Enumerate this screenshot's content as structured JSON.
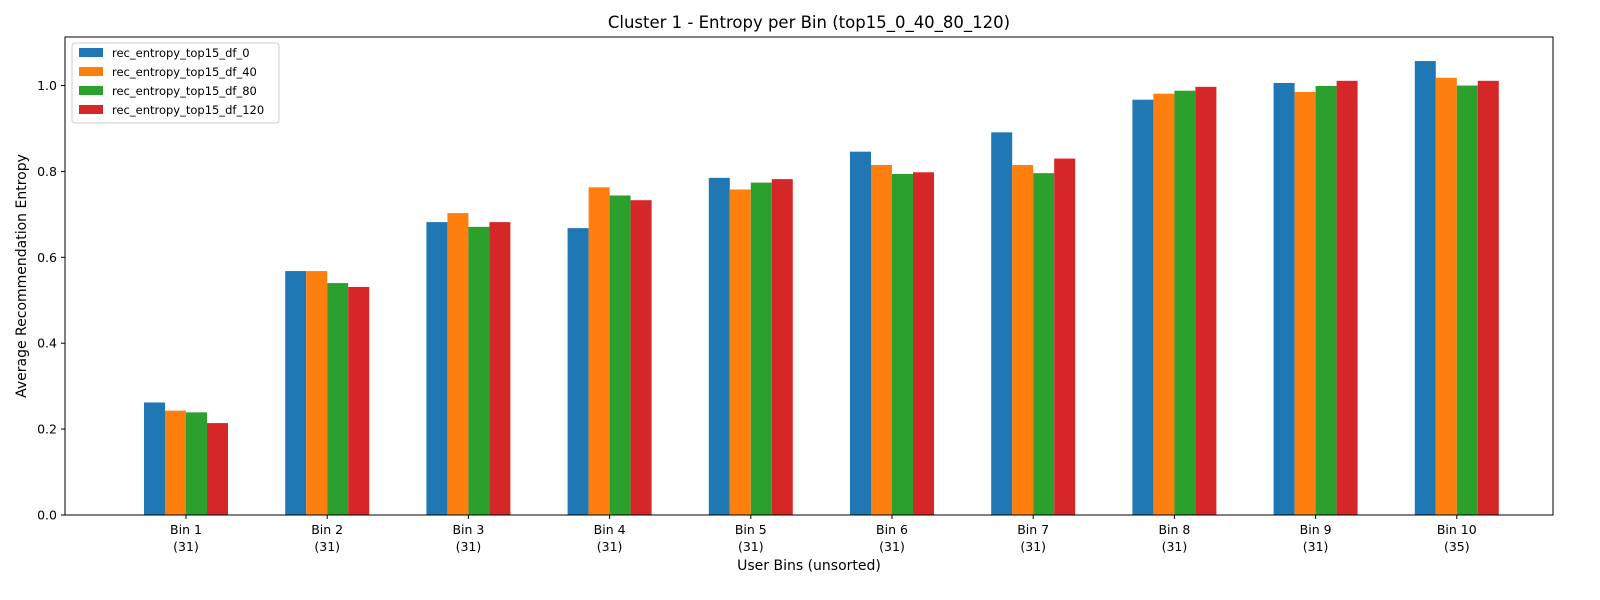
{
  "chart_data": {
    "type": "bar",
    "title": "Cluster 1 - Entropy per Bin (top15_0_40_80_120)",
    "xlabel": "User Bins (unsorted)",
    "ylabel": "Average Recommendation Entropy",
    "ylim": [
      0,
      1.113
    ],
    "yticks": [
      "0.0",
      "0.2",
      "0.4",
      "0.6",
      "0.8",
      "1.0"
    ],
    "legend_position": "top-left",
    "grid": false,
    "categories": [
      {
        "name": "Bin 1",
        "count": "(31)"
      },
      {
        "name": "Bin 2",
        "count": "(31)"
      },
      {
        "name": "Bin 3",
        "count": "(31)"
      },
      {
        "name": "Bin 4",
        "count": "(31)"
      },
      {
        "name": "Bin 5",
        "count": "(31)"
      },
      {
        "name": "Bin 6",
        "count": "(31)"
      },
      {
        "name": "Bin 7",
        "count": "(31)"
      },
      {
        "name": "Bin 8",
        "count": "(31)"
      },
      {
        "name": "Bin 9",
        "count": "(31)"
      },
      {
        "name": "Bin 10",
        "count": "(35)"
      }
    ],
    "series": [
      {
        "name": "rec_entropy_top15_df_0",
        "color": "#1f77b4",
        "values": [
          0.262,
          0.568,
          0.682,
          0.668,
          0.785,
          0.846,
          0.891,
          0.967,
          1.006,
          1.057
        ]
      },
      {
        "name": "rec_entropy_top15_df_40",
        "color": "#ff7f0e",
        "values": [
          0.243,
          0.568,
          0.703,
          0.763,
          0.758,
          0.815,
          0.815,
          0.981,
          0.985,
          1.018
        ]
      },
      {
        "name": "rec_entropy_top15_df_80",
        "color": "#2ca02c",
        "values": [
          0.239,
          0.54,
          0.671,
          0.744,
          0.774,
          0.794,
          0.796,
          0.988,
          0.999,
          1.0
        ]
      },
      {
        "name": "rec_entropy_top15_df_120",
        "color": "#d62728",
        "values": [
          0.214,
          0.531,
          0.682,
          0.733,
          0.782,
          0.798,
          0.83,
          0.997,
          1.011,
          1.011
        ]
      }
    ]
  }
}
